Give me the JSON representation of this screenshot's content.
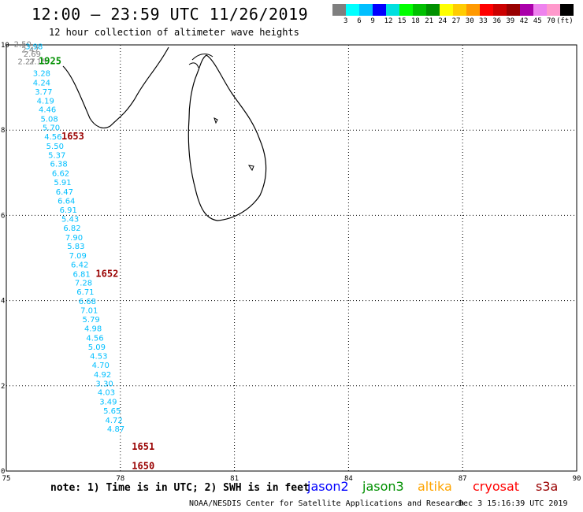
{
  "header": {
    "title": "12:00 – 23:59 UTC 11/26/2019",
    "subtitle": "12 hour collection of altimeter wave heights"
  },
  "legend": {
    "colors": [
      "#7f7f7f",
      "#00ffff",
      "#00bfff",
      "#0000ff",
      "#00dfdf",
      "#00ff00",
      "#00c000",
      "#009000",
      "#ffff00",
      "#ffcc00",
      "#ff9900",
      "#ff0000",
      "#cc0000",
      "#990000",
      "#aa00aa",
      "#ee82ee",
      "#ff99cc",
      "#000000"
    ],
    "labels": [
      "3",
      "6",
      "9",
      "12",
      "15",
      "18",
      "21",
      "24",
      "27",
      "30",
      "33",
      "36",
      "39",
      "42",
      "45",
      "70"
    ],
    "unit": "(ft)"
  },
  "map": {
    "x_ticks": [
      "75",
      "78",
      "81",
      "84",
      "87",
      "90"
    ],
    "y_ticks": [
      "0",
      "2",
      "4",
      "6",
      "8",
      "10"
    ],
    "lon_range": [
      75,
      90
    ],
    "lat_range": [
      0,
      10
    ],
    "wave_labels": [
      {
        "text": "2.50",
        "lon": 75.2,
        "lat": 9.95,
        "color": "#7f7f7f"
      },
      {
        "text": "3.98",
        "lon": 75.5,
        "lat": 9.9,
        "color": "#00bfff"
      },
      {
        "text": "2.47",
        "lon": 75.4,
        "lat": 9.82,
        "color": "#7f7f7f"
      },
      {
        "text": "2.69",
        "lon": 75.45,
        "lat": 9.72,
        "color": "#7f7f7f"
      },
      {
        "text": "2.27",
        "lon": 75.3,
        "lat": 9.55,
        "color": "#7f7f7f"
      },
      {
        "text": "2.15",
        "lon": 75.6,
        "lat": 9.55,
        "color": "#7f7f7f"
      },
      {
        "text": "3.28",
        "lon": 75.7,
        "lat": 9.27,
        "color": "#00bfff"
      },
      {
        "text": "4.24",
        "lon": 75.7,
        "lat": 9.05,
        "color": "#00bfff"
      },
      {
        "text": "3.77",
        "lon": 75.75,
        "lat": 8.84,
        "color": "#00bfff"
      },
      {
        "text": "4.19",
        "lon": 75.8,
        "lat": 8.62,
        "color": "#00bfff"
      },
      {
        "text": "4.46",
        "lon": 75.85,
        "lat": 8.42,
        "color": "#00bfff"
      },
      {
        "text": "5.08",
        "lon": 75.9,
        "lat": 8.2,
        "color": "#00bfff"
      },
      {
        "text": "5.70",
        "lon": 75.95,
        "lat": 7.99,
        "color": "#00bfff"
      },
      {
        "text": "4.56",
        "lon": 76.0,
        "lat": 7.78,
        "color": "#00bfff"
      },
      {
        "text": "5.50",
        "lon": 76.05,
        "lat": 7.56,
        "color": "#00bfff"
      },
      {
        "text": "5.37",
        "lon": 76.1,
        "lat": 7.35,
        "color": "#00bfff"
      },
      {
        "text": "6.38",
        "lon": 76.15,
        "lat": 7.14,
        "color": "#00bfff"
      },
      {
        "text": "6.62",
        "lon": 76.2,
        "lat": 6.92,
        "color": "#00bfff"
      },
      {
        "text": "5.91",
        "lon": 76.25,
        "lat": 6.71,
        "color": "#00bfff"
      },
      {
        "text": "6.47",
        "lon": 76.3,
        "lat": 6.49,
        "color": "#00bfff"
      },
      {
        "text": "6.64",
        "lon": 76.35,
        "lat": 6.28,
        "color": "#00bfff"
      },
      {
        "text": "6.91",
        "lon": 76.4,
        "lat": 6.06,
        "color": "#00bfff"
      },
      {
        "text": "5.43",
        "lon": 76.45,
        "lat": 5.85,
        "color": "#00bfff"
      },
      {
        "text": "6.82",
        "lon": 76.5,
        "lat": 5.64,
        "color": "#00bfff"
      },
      {
        "text": "7.90",
        "lon": 76.55,
        "lat": 5.42,
        "color": "#00bfff"
      },
      {
        "text": "5.83",
        "lon": 76.6,
        "lat": 5.21,
        "color": "#00bfff"
      },
      {
        "text": "7.09",
        "lon": 76.65,
        "lat": 4.99,
        "color": "#00bfff"
      },
      {
        "text": "6.42",
        "lon": 76.7,
        "lat": 4.78,
        "color": "#00bfff"
      },
      {
        "text": "6.81",
        "lon": 76.75,
        "lat": 4.56,
        "color": "#00bfff"
      },
      {
        "text": "7.28",
        "lon": 76.8,
        "lat": 4.35,
        "color": "#00bfff"
      },
      {
        "text": "6.71",
        "lon": 76.85,
        "lat": 4.14,
        "color": "#00bfff"
      },
      {
        "text": "6.68",
        "lon": 76.9,
        "lat": 3.92,
        "color": "#00bfff"
      },
      {
        "text": "7.01",
        "lon": 76.95,
        "lat": 3.71,
        "color": "#00bfff"
      },
      {
        "text": "5.79",
        "lon": 77.0,
        "lat": 3.49,
        "color": "#00bfff"
      },
      {
        "text": "4.98",
        "lon": 77.05,
        "lat": 3.28,
        "color": "#00bfff"
      },
      {
        "text": "4.56",
        "lon": 77.1,
        "lat": 3.06,
        "color": "#00bfff"
      },
      {
        "text": "5.09",
        "lon": 77.15,
        "lat": 2.85,
        "color": "#00bfff"
      },
      {
        "text": "4.53",
        "lon": 77.2,
        "lat": 2.63,
        "color": "#00bfff"
      },
      {
        "text": "4.70",
        "lon": 77.25,
        "lat": 2.42,
        "color": "#00bfff"
      },
      {
        "text": "4.92",
        "lon": 77.3,
        "lat": 2.2,
        "color": "#00bfff"
      },
      {
        "text": "3.30",
        "lon": 77.35,
        "lat": 1.99,
        "color": "#00bfff"
      },
      {
        "text": "4.03",
        "lon": 77.4,
        "lat": 1.78,
        "color": "#00bfff"
      },
      {
        "text": "3.49",
        "lon": 77.45,
        "lat": 1.56,
        "color": "#00bfff"
      },
      {
        "text": "5.65",
        "lon": 77.55,
        "lat": 1.35,
        "color": "#00bfff"
      },
      {
        "text": "4.72",
        "lon": 77.6,
        "lat": 1.13,
        "color": "#00bfff"
      },
      {
        "text": "4.87",
        "lon": 77.65,
        "lat": 0.92,
        "color": "#00bfff"
      }
    ],
    "time_labels": [
      {
        "text": "1925",
        "lon": 75.85,
        "lat": 9.55,
        "color": "#009000"
      },
      {
        "text": "1653",
        "lon": 76.45,
        "lat": 7.78,
        "color": "#990000"
      },
      {
        "text": "1652",
        "lon": 77.35,
        "lat": 4.56,
        "color": "#990000"
      },
      {
        "text": "1651",
        "lon": 78.3,
        "lat": 0.5,
        "color": "#990000"
      },
      {
        "text": "1650",
        "lon": 78.3,
        "lat": 0.05,
        "color": "#990000"
      }
    ]
  },
  "footer": {
    "note": "note: 1) Time is in UTC; 2) SWH is in feet",
    "satellites": [
      {
        "name": "jason2",
        "color": "#0000ff"
      },
      {
        "name": "jason3",
        "color": "#009000"
      },
      {
        "name": "altika",
        "color": "#ffa500"
      },
      {
        "name": "cryosat",
        "color": "#ff0000"
      },
      {
        "name": "s3a",
        "color": "#990000"
      }
    ],
    "credit": "NOAA/NESDIS Center for Satellite Applications and Research",
    "timestamp": "Dec  3 15:16:39 UTC 2019"
  }
}
